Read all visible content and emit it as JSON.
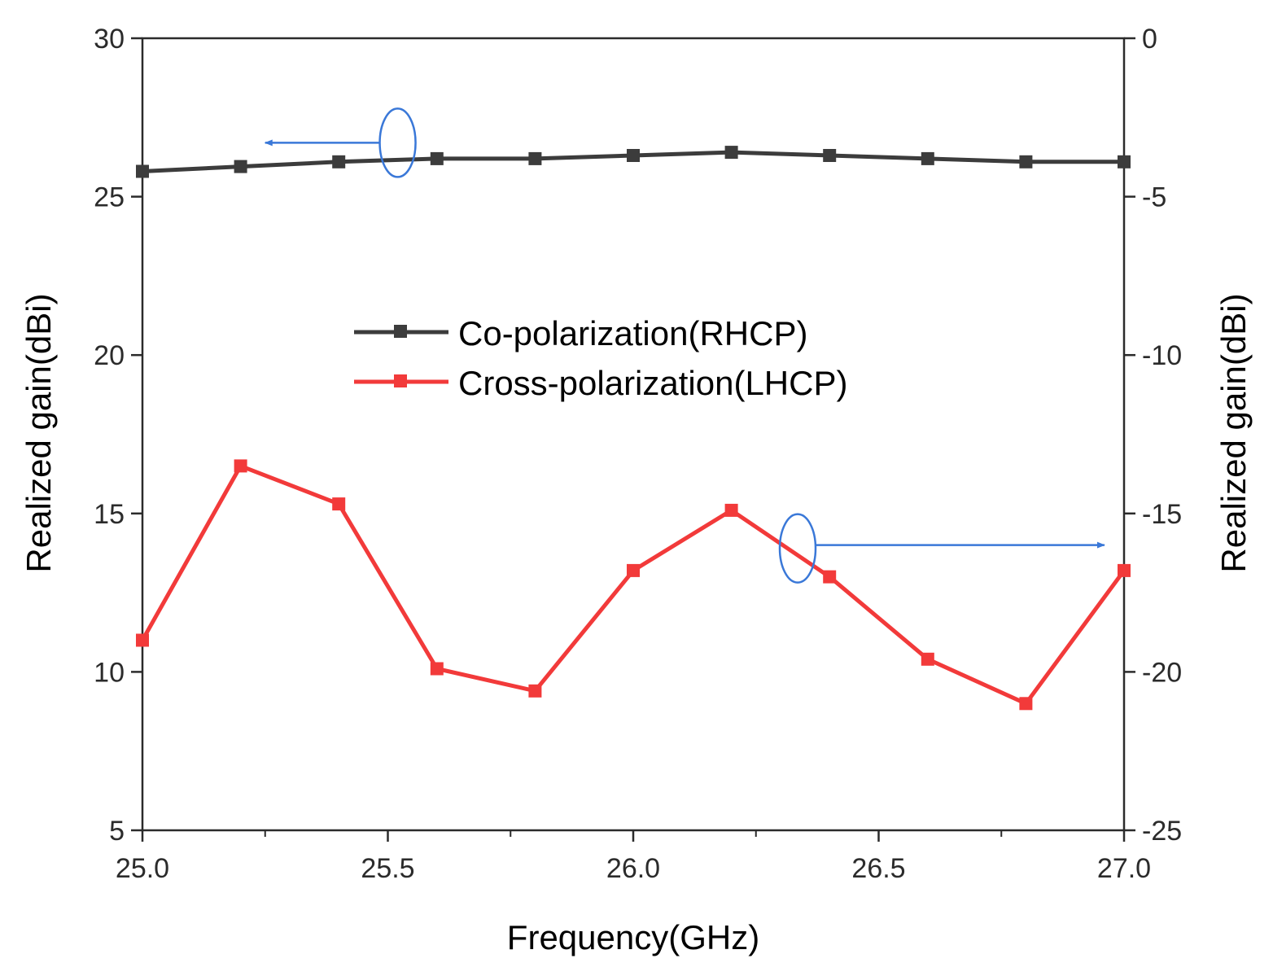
{
  "chart_data": {
    "type": "line",
    "title": "",
    "xlabel": "Frequency(GHz)",
    "ylabel_left": "Realized gain(dBi)",
    "ylabel_right": "Realized gain(dBi)",
    "xlim": [
      25.0,
      27.0
    ],
    "ylim_left": [
      5,
      30
    ],
    "ylim_right": [
      -25,
      0
    ],
    "x_ticks": [
      "25.0",
      "25.5",
      "26.0",
      "26.5",
      "27.0"
    ],
    "x_tick_values": [
      25.0,
      25.5,
      26.0,
      26.5,
      27.0
    ],
    "y_ticks_left": [
      "5",
      "10",
      "15",
      "20",
      "25",
      "30"
    ],
    "y_tick_values_left": [
      5,
      10,
      15,
      20,
      25,
      30
    ],
    "y_ticks_right": [
      "-25",
      "-20",
      "-15",
      "-10",
      "-5",
      "0"
    ],
    "y_tick_values_right": [
      -25,
      -20,
      -15,
      -10,
      -5,
      0
    ],
    "grid": false,
    "legend_position": "center",
    "x": [
      25.0,
      25.2,
      25.4,
      25.6,
      25.8,
      26.0,
      26.2,
      26.4,
      26.6,
      26.8,
      27.0
    ],
    "series": [
      {
        "name": "Co-polarization(RHCP)",
        "axis": "left",
        "color": "#3c3c3c",
        "marker": "square",
        "values": [
          25.8,
          25.95,
          26.1,
          26.2,
          26.2,
          26.3,
          26.4,
          26.3,
          26.2,
          26.1,
          26.1
        ]
      },
      {
        "name": "Cross-polarization(LHCP)",
        "axis": "right",
        "color": "#f23a3a",
        "marker": "square",
        "values": [
          -19.0,
          -13.5,
          -14.7,
          -19.9,
          -20.6,
          -16.8,
          -14.9,
          -17.0,
          -19.6,
          -21.0,
          -16.8
        ]
      }
    ],
    "annotations": [
      {
        "type": "ellipse-arrow",
        "series": "Co-polarization(RHCP)",
        "direction": "left",
        "color": "#3a78d8"
      },
      {
        "type": "ellipse-arrow",
        "series": "Cross-polarization(LHCP)",
        "direction": "right",
        "color": "#3a78d8"
      }
    ]
  }
}
